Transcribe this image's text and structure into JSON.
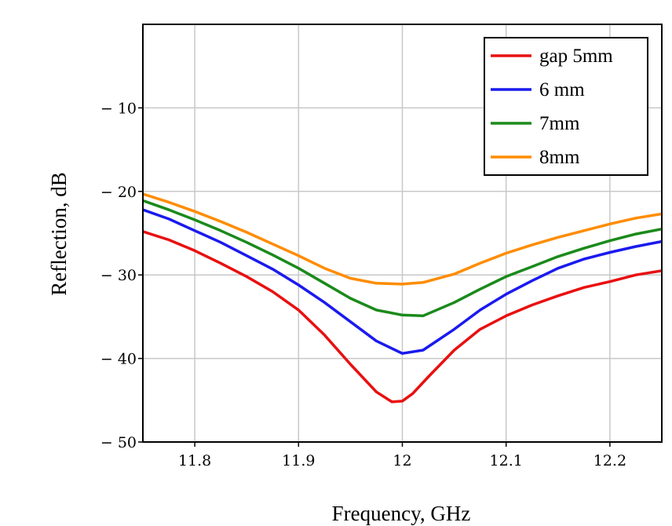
{
  "chart_data": {
    "type": "line",
    "title": "",
    "xlabel": "Frequency, GHz",
    "ylabel": "Reflection, dB",
    "xlim": [
      11.75,
      12.25
    ],
    "ylim": [
      -50,
      0
    ],
    "x_ticks": [
      11.8,
      11.9,
      12.0,
      12.1,
      12.2
    ],
    "x_tick_labels": [
      "11.8",
      "11.9",
      "12",
      "12.1",
      "12.2"
    ],
    "y_ticks": [
      -10,
      -20,
      -30,
      -40,
      -50
    ],
    "y_tick_labels": [
      "− 10",
      "− 20",
      "− 30",
      "− 40",
      "− 50"
    ],
    "grid": true,
    "legend_position": "top-right",
    "series": [
      {
        "name": "gap 5mm",
        "color": "#e81010",
        "x": [
          11.75,
          11.775,
          11.8,
          11.825,
          11.85,
          11.875,
          11.9,
          11.925,
          11.95,
          11.975,
          11.99,
          12.0,
          12.01,
          12.025,
          12.05,
          12.075,
          12.1,
          12.125,
          12.15,
          12.175,
          12.2,
          12.225,
          12.25
        ],
        "y": [
          -24.8,
          -25.8,
          -27.1,
          -28.6,
          -30.2,
          -32.0,
          -34.2,
          -37.2,
          -40.7,
          -44.0,
          -45.2,
          -45.1,
          -44.2,
          -42.2,
          -39.0,
          -36.5,
          -34.9,
          -33.6,
          -32.5,
          -31.5,
          -30.8,
          -30.0,
          -29.5
        ]
      },
      {
        "name": "6 mm",
        "color": "#1a1aee",
        "x": [
          11.75,
          11.775,
          11.8,
          11.825,
          11.85,
          11.875,
          11.9,
          11.925,
          11.95,
          11.975,
          12.0,
          12.02,
          12.05,
          12.075,
          12.1,
          12.125,
          12.15,
          12.175,
          12.2,
          12.225,
          12.25
        ],
        "y": [
          -22.2,
          -23.3,
          -24.7,
          -26.1,
          -27.7,
          -29.3,
          -31.2,
          -33.3,
          -35.6,
          -37.9,
          -39.4,
          -39.0,
          -36.5,
          -34.2,
          -32.3,
          -30.7,
          -29.2,
          -28.1,
          -27.3,
          -26.6,
          -26.0
        ]
      },
      {
        "name": "7mm",
        "color": "#1b8a1b",
        "x": [
          11.75,
          11.775,
          11.8,
          11.825,
          11.85,
          11.875,
          11.9,
          11.925,
          11.95,
          11.975,
          12.0,
          12.02,
          12.05,
          12.075,
          12.1,
          12.125,
          12.15,
          12.175,
          12.2,
          12.225,
          12.25
        ],
        "y": [
          -21.1,
          -22.2,
          -23.4,
          -24.7,
          -26.1,
          -27.6,
          -29.2,
          -31.0,
          -32.8,
          -34.2,
          -34.8,
          -34.9,
          -33.3,
          -31.7,
          -30.2,
          -29.0,
          -27.8,
          -26.8,
          -25.9,
          -25.1,
          -24.5
        ]
      },
      {
        "name": "8mm",
        "color": "#ff8c00",
        "x": [
          11.75,
          11.775,
          11.8,
          11.825,
          11.85,
          11.875,
          11.9,
          11.925,
          11.95,
          11.975,
          12.0,
          12.02,
          12.05,
          12.075,
          12.1,
          12.125,
          12.15,
          12.175,
          12.2,
          12.225,
          12.25
        ],
        "y": [
          -20.3,
          -21.3,
          -22.4,
          -23.6,
          -24.9,
          -26.3,
          -27.7,
          -29.2,
          -30.4,
          -31.0,
          -31.1,
          -30.9,
          -29.9,
          -28.6,
          -27.4,
          -26.4,
          -25.5,
          -24.7,
          -23.9,
          -23.2,
          -22.7
        ]
      }
    ]
  }
}
